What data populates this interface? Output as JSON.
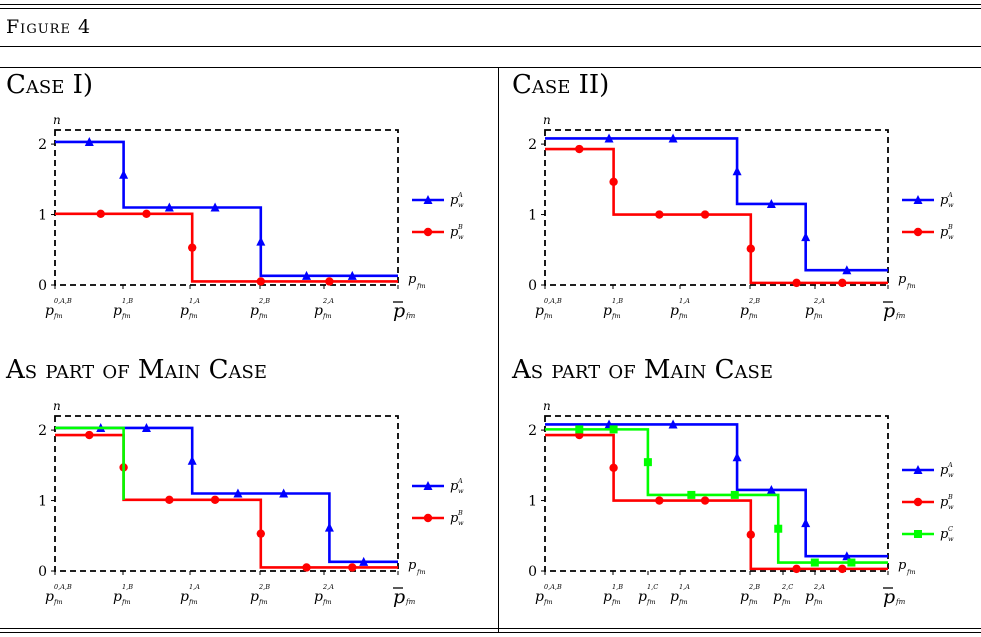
{
  "figure_title": "Figure 4",
  "panel_titles": [
    "Case I)",
    "Case II)",
    "As part of Main Case",
    "As part of Main Case"
  ],
  "colors": {
    "A": "#0000ff",
    "B": "#ff0000",
    "C": "#00ff00"
  },
  "chart_data": [
    {
      "type": "line",
      "title": "Case I)",
      "ylabel": "n",
      "xlabel": "p_fm",
      "ylim": [
        0,
        2.2
      ],
      "yticks": [
        0,
        1,
        2
      ],
      "xticks": [
        "p_fm^{0,A,B}",
        "p_fm^{1,B}",
        "p_fm^{1,A}",
        "p_fm^{2,B}",
        "p_fm^{2,A}",
        "p̄_fm"
      ],
      "grid": false,
      "legend": "right",
      "series": [
        {
          "name": "p_w^A",
          "color": "#0000ff",
          "marker": "triangle",
          "x": [
            0,
            1,
            1,
            3,
            3,
            5
          ],
          "y": [
            2.03,
            2.03,
            1.1,
            1.1,
            0.13,
            0.13
          ]
        },
        {
          "name": "p_w^B",
          "color": "#ff0000",
          "marker": "circle",
          "x": [
            0,
            2,
            2,
            5
          ],
          "y": [
            1.01,
            1.01,
            0.05,
            0.05
          ]
        }
      ]
    },
    {
      "type": "line",
      "title": "Case II)",
      "ylabel": "n",
      "xlabel": "p_fm",
      "ylim": [
        0,
        2.2
      ],
      "yticks": [
        0,
        1,
        2
      ],
      "xticks": [
        "p_fm^{0,A,B}",
        "p_fm^{1,B}",
        "p_fm^{1,A}",
        "p_fm^{2,B}",
        "p_fm^{2,A}",
        "p̄_fm"
      ],
      "grid": false,
      "legend": "right",
      "series": [
        {
          "name": "p_w^A",
          "color": "#0000ff",
          "marker": "triangle",
          "x": [
            0,
            2.8,
            2.8,
            3.8,
            3.8,
            5
          ],
          "y": [
            2.08,
            2.08,
            1.15,
            1.15,
            0.21,
            0.21
          ]
        },
        {
          "name": "p_w^B",
          "color": "#ff0000",
          "marker": "circle",
          "x": [
            0,
            1,
            1,
            3,
            3,
            5
          ],
          "y": [
            1.93,
            1.93,
            1.0,
            1.0,
            0.03,
            0.03
          ]
        }
      ]
    },
    {
      "type": "line",
      "title": "As part of Main Case",
      "ylabel": "n",
      "xlabel": "p_fm",
      "ylim": [
        0,
        2.2
      ],
      "yticks": [
        0,
        1,
        2
      ],
      "xticks": [
        "p_fm^{0,A,B}",
        "p_fm^{1,B}",
        "p_fm^{1,A}",
        "p_fm^{2,B}",
        "p_fm^{2,A}",
        "p̄_fm"
      ],
      "grid": false,
      "legend": "right",
      "series": [
        {
          "name": "p_w^A",
          "color": "#0000ff",
          "marker": "triangle",
          "x": [
            0,
            2,
            2,
            4,
            4,
            5
          ],
          "y": [
            2.03,
            2.03,
            1.1,
            1.1,
            0.13,
            0.13
          ]
        },
        {
          "name": "p_w^B",
          "color": "#ff0000",
          "marker": "circle",
          "x": [
            0,
            1,
            1,
            3,
            3,
            5
          ],
          "y": [
            1.93,
            1.93,
            1.01,
            1.01,
            0.05,
            0.05
          ]
        },
        {
          "name": "",
          "color": "#00ff00",
          "marker": "none",
          "x": [
            0,
            1,
            1
          ],
          "y": [
            2.03,
            2.03,
            1.01
          ]
        }
      ]
    },
    {
      "type": "line",
      "title": "As part of Main Case",
      "ylabel": "n",
      "xlabel": "p_fm",
      "ylim": [
        0,
        2.2
      ],
      "yticks": [
        0,
        1,
        2
      ],
      "xticks": [
        "p_fm^{0,A,B}",
        "p_fm^{1,B}",
        "p_fm^{1,C}",
        "p_fm^{1,A}",
        "p_fm^{2,B}",
        "p_fm^{2,C}",
        "p_fm^{2,A}",
        "p̄_fm"
      ],
      "grid": false,
      "legend": "right",
      "series": [
        {
          "name": "p_w^A",
          "color": "#0000ff",
          "marker": "triangle",
          "x": [
            0,
            2.8,
            2.8,
            3.8,
            3.8,
            5
          ],
          "y": [
            2.08,
            2.08,
            1.15,
            1.15,
            0.21,
            0.21
          ]
        },
        {
          "name": "p_w^B",
          "color": "#ff0000",
          "marker": "circle",
          "x": [
            0,
            1,
            1,
            3,
            3,
            5
          ],
          "y": [
            1.93,
            1.93,
            1.0,
            1.0,
            0.03,
            0.03
          ]
        },
        {
          "name": "p_w^C",
          "color": "#00ff00",
          "marker": "square",
          "x": [
            0,
            1.5,
            1.5,
            3.4,
            3.4,
            5
          ],
          "y": [
            2.01,
            2.01,
            1.08,
            1.08,
            0.12,
            0.12
          ]
        }
      ]
    }
  ]
}
